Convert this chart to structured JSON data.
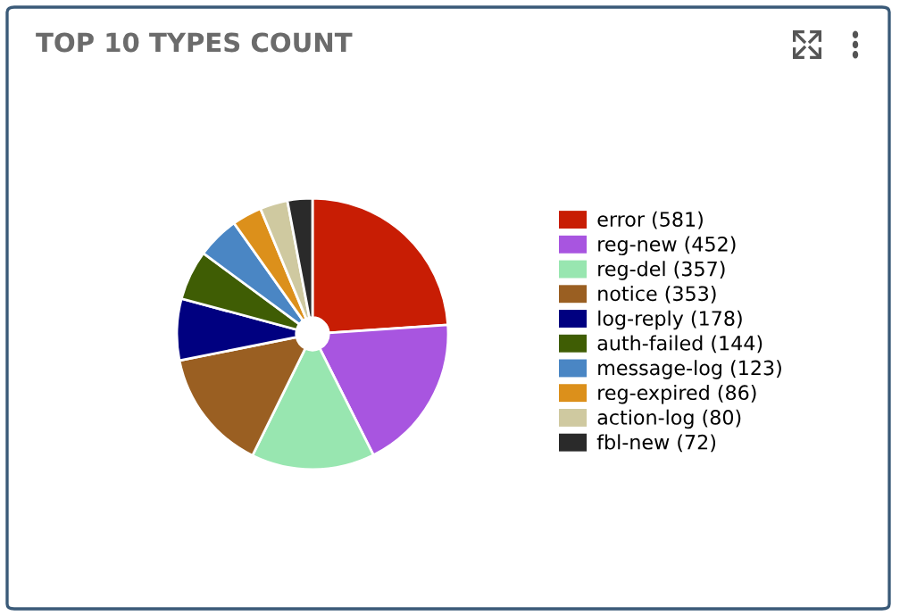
{
  "chart_data": {
    "type": "pie",
    "title": "TOP 10 TYPES COUNT",
    "categories": [
      "error (581)",
      "reg-new (452)",
      "reg-del (357)",
      "notice (353)",
      "log-reply (178)",
      "auth-failed (144)",
      "message-log (123)",
      "reg-expired (86)",
      "action-log (80)",
      "fbl-new (72)"
    ],
    "values": [
      581,
      452,
      357,
      353,
      178,
      144,
      123,
      86,
      80,
      72
    ],
    "colors": [
      "#c81d04",
      "#a855e0",
      "#98e6b0",
      "#9a5f22",
      "#000080",
      "#3f5d04",
      "#4a86c4",
      "#dc901b",
      "#cfc9a0",
      "#2a2a2a"
    ],
    "legend": "right"
  }
}
